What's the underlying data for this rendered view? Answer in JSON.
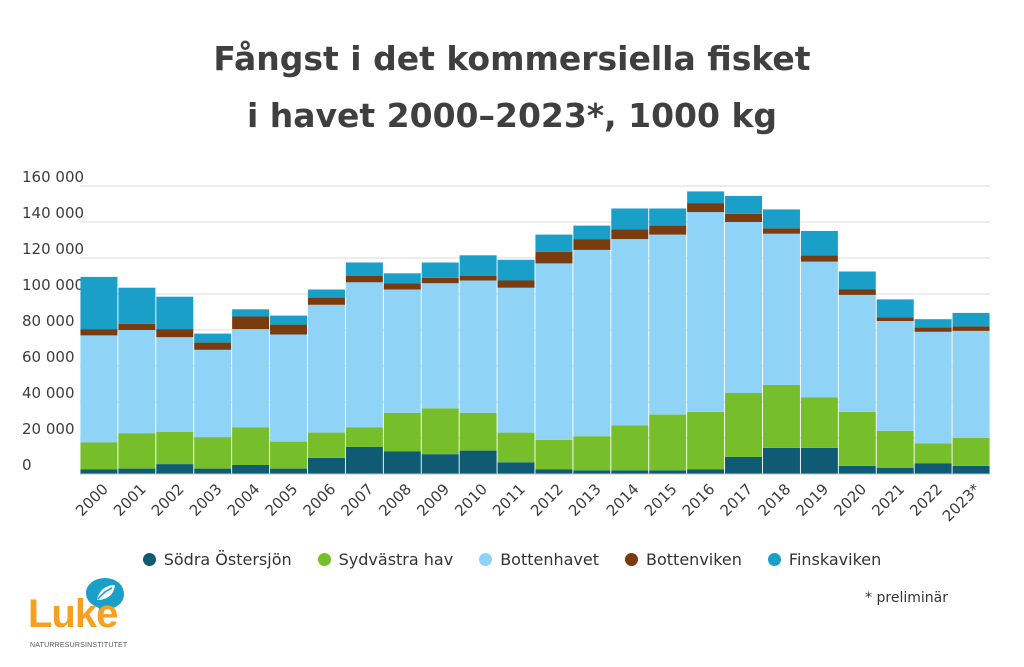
{
  "title": {
    "line1": "Fångst i det kommersiella fisket",
    "line2": "i havet 2000–2023*, 1000 kg"
  },
  "footnote": "* preliminär",
  "logo": {
    "name": "Luke",
    "subtitle": "NATURRESURSINSTITUTET"
  },
  "colors": {
    "Södra Östersjön": "#0e5b73",
    "Sydvästra hav": "#76bf2a",
    "Bottenhavet": "#8fd3f7",
    "Bottenviken": "#7a3c0e",
    "Finskaviken": "#1a9fc9",
    "grid": "#d9d9d9",
    "logo": "#f5a01e"
  },
  "chart_data": {
    "type": "bar",
    "stacked": true,
    "title": "Fångst i det kommersiella fisket i havet 2000–2023*, 1000 kg",
    "xlabel": "",
    "ylabel": "",
    "ylim": [
      0,
      160000
    ],
    "yticks": [
      0,
      20000,
      40000,
      60000,
      80000,
      100000,
      120000,
      140000,
      160000
    ],
    "ytick_labels": [
      "0",
      "20 000",
      "40 000",
      "60 000",
      "80 000",
      "100 000",
      "120 000",
      "140 000",
      "160 000"
    ],
    "grid": true,
    "legend_position": "bottom",
    "categories": [
      "2000",
      "2001",
      "2002",
      "2003",
      "2004",
      "2005",
      "2006",
      "2007",
      "2008",
      "2009",
      "2010",
      "2011",
      "2012",
      "2013",
      "2014",
      "2015",
      "2016",
      "2017",
      "2018",
      "2019",
      "2020",
      "2021",
      "2022",
      "2023*"
    ],
    "series": [
      {
        "name": "Södra Östersjön",
        "values": [
          2500,
          3000,
          5500,
          3000,
          5000,
          3000,
          9000,
          15000,
          12500,
          11000,
          13000,
          6500,
          2500,
          2000,
          2000,
          2000,
          2500,
          9500,
          14500,
          14500,
          4500,
          3500,
          6000,
          4500
        ]
      },
      {
        "name": "Sydvästra hav",
        "values": [
          15000,
          19500,
          18000,
          17500,
          21000,
          15000,
          14000,
          11000,
          21500,
          25500,
          21000,
          16500,
          16500,
          19000,
          25000,
          31000,
          32000,
          35500,
          35000,
          28000,
          30000,
          20500,
          11000,
          15500
        ]
      },
      {
        "name": "Bottenhavet",
        "values": [
          59500,
          57500,
          52500,
          48500,
          54500,
          59500,
          71000,
          80500,
          68500,
          69500,
          73500,
          80500,
          98000,
          103500,
          103500,
          100000,
          111000,
          95000,
          84000,
          75500,
          65000,
          61000,
          62000,
          59500
        ]
      },
      {
        "name": "Bottenviken",
        "values": [
          3500,
          3500,
          4500,
          4000,
          7000,
          5500,
          4000,
          3500,
          3500,
          3000,
          2500,
          4000,
          6500,
          6000,
          5500,
          5000,
          5000,
          4500,
          3000,
          3500,
          3000,
          2000,
          2500,
          2500
        ]
      },
      {
        "name": "Finskaviken",
        "values": [
          29000,
          20000,
          18000,
          5000,
          4000,
          5000,
          4500,
          7500,
          5500,
          8500,
          11500,
          11500,
          9500,
          7500,
          11500,
          9500,
          6500,
          10000,
          10500,
          13500,
          10000,
          10000,
          4500,
          7500
        ]
      }
    ]
  }
}
